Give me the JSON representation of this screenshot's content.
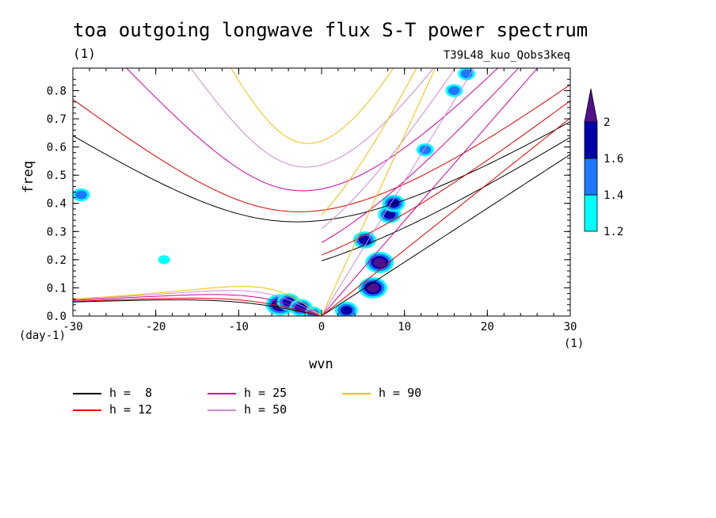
{
  "title": "toa outgoing longwave flux S-T power spectrum",
  "units_left": "(1)",
  "run_name": "T39L48_kuo_Qobs3keq",
  "colors": {
    "h8": "#000000",
    "h12": "#e00000",
    "h25": "#d000a0",
    "h50": "#d088d8",
    "h90": "#f0c000",
    "c12": "#00ffff",
    "c14": "#1e78ff",
    "c16": "#0000aa",
    "c20": "#50128c"
  },
  "legend": [
    {
      "label": "h =  8",
      "color": "#000000"
    },
    {
      "label": "h = 12",
      "color": "#e00000"
    },
    {
      "label": "h = 25",
      "color": "#d000a0"
    },
    {
      "label": "h = 50",
      "color": "#d088d8"
    },
    {
      "label": "h = 90",
      "color": "#f0c000"
    }
  ],
  "chart_data": {
    "type": "heatmap",
    "xlabel": "wvn",
    "ylabel": "freq",
    "x_unit": "(1)",
    "y_unit": "(day-1)",
    "xlim": [
      -30,
      30
    ],
    "ylim": [
      0,
      0.88
    ],
    "xticks": [
      -30,
      -20,
      -10,
      0,
      10,
      20,
      30
    ],
    "yticks": [
      0.0,
      0.1,
      0.2,
      0.3,
      0.4,
      0.5,
      0.6,
      0.7,
      0.8
    ],
    "ytick_labels": [
      "0.0",
      "0.1",
      "0.2",
      "0.3",
      "0.4",
      "0.5",
      "0.6",
      "0.7",
      "0.8"
    ],
    "colorbar": {
      "levels": [
        1.2,
        1.4,
        1.6,
        2
      ],
      "labels": [
        "1.2",
        "1.4",
        "1.6",
        "2"
      ],
      "colors": [
        "#00ffff",
        "#1e78ff",
        "#0000aa",
        "#50128c"
      ]
    },
    "equivalent_depths": [
      8,
      12,
      25,
      50,
      90
    ],
    "blobs": [
      {
        "x": 6.2,
        "y": 0.1,
        "level": 4
      },
      {
        "x": 7.0,
        "y": 0.19,
        "level": 4
      },
      {
        "x": 5.2,
        "y": 0.27,
        "level": 3
      },
      {
        "x": 8.2,
        "y": 0.36,
        "level": 3
      },
      {
        "x": 8.7,
        "y": 0.4,
        "level": 3
      },
      {
        "x": 12.5,
        "y": 0.59,
        "level": 2
      },
      {
        "x": -5.0,
        "y": 0.04,
        "level": 4
      },
      {
        "x": -4.0,
        "y": 0.05,
        "level": 3
      },
      {
        "x": -2.5,
        "y": 0.03,
        "level": 3
      },
      {
        "x": 3.0,
        "y": 0.02,
        "level": 3
      },
      {
        "x": 16.0,
        "y": 0.8,
        "level": 2
      },
      {
        "x": 17.5,
        "y": 0.86,
        "level": 2
      },
      {
        "x": -29.0,
        "y": 0.43,
        "level": 2
      },
      {
        "x": -19.0,
        "y": 0.2,
        "level": 1
      },
      {
        "x": -1.0,
        "y": 0.01,
        "level": 2
      }
    ]
  }
}
